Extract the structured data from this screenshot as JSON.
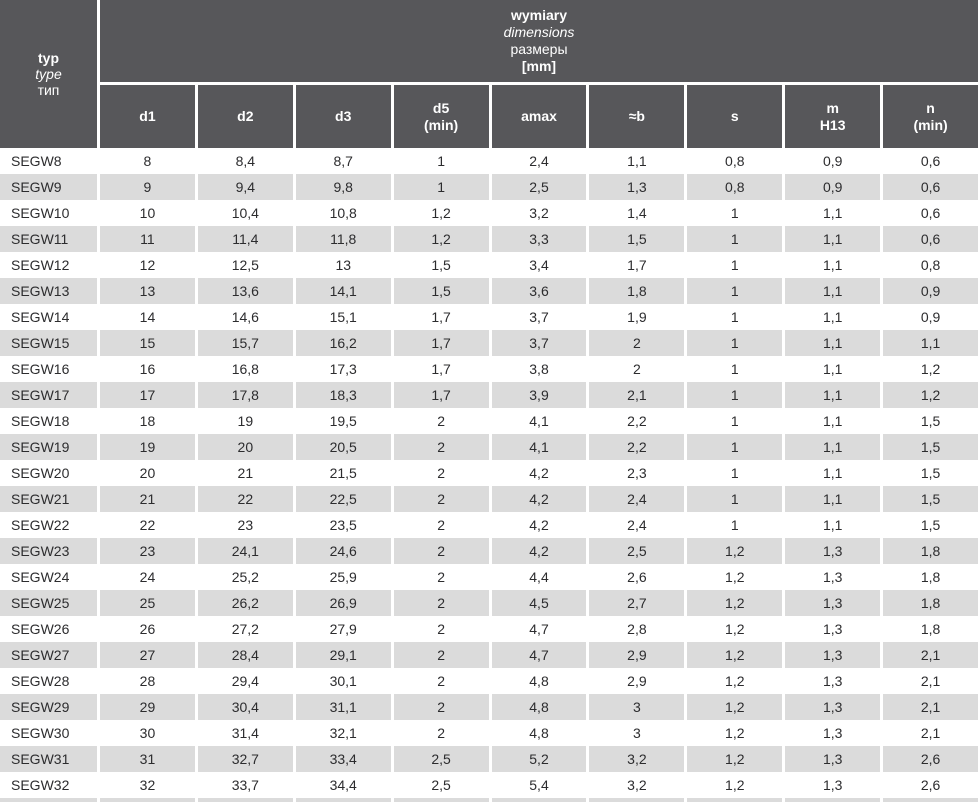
{
  "colors": {
    "header_bg": "#57575a",
    "header_text": "#ffffff",
    "alt_row_bg": "#dbdbdb",
    "row_bg": "#ffffff",
    "cell_text": "#2c2c2e",
    "separator": "#ffffff"
  },
  "table": {
    "corner_lines": [
      "typ",
      "type",
      "тип"
    ],
    "group_lines": [
      "wymiary",
      "dimensions",
      "размеры",
      "[mm]"
    ],
    "columns": [
      {
        "label": "d1",
        "sub": ""
      },
      {
        "label": "d2",
        "sub": ""
      },
      {
        "label": "d3",
        "sub": ""
      },
      {
        "label": "d5",
        "sub": "(min)"
      },
      {
        "label": "amax",
        "sub": ""
      },
      {
        "label": "≈b",
        "sub": ""
      },
      {
        "label": "s",
        "sub": ""
      },
      {
        "label": "m",
        "sub": "H13"
      },
      {
        "label": "n",
        "sub": "(min)"
      }
    ],
    "rows": [
      {
        "typ": "SEGW8",
        "values": [
          "8",
          "8,4",
          "8,7",
          "1",
          "2,4",
          "1,1",
          "0,8",
          "0,9",
          "0,6"
        ]
      },
      {
        "typ": "SEGW9",
        "values": [
          "9",
          "9,4",
          "9,8",
          "1",
          "2,5",
          "1,3",
          "0,8",
          "0,9",
          "0,6"
        ]
      },
      {
        "typ": "SEGW10",
        "values": [
          "10",
          "10,4",
          "10,8",
          "1,2",
          "3,2",
          "1,4",
          "1",
          "1,1",
          "0,6"
        ]
      },
      {
        "typ": "SEGW11",
        "values": [
          "11",
          "11,4",
          "11,8",
          "1,2",
          "3,3",
          "1,5",
          "1",
          "1,1",
          "0,6"
        ]
      },
      {
        "typ": "SEGW12",
        "values": [
          "12",
          "12,5",
          "13",
          "1,5",
          "3,4",
          "1,7",
          "1",
          "1,1",
          "0,8"
        ]
      },
      {
        "typ": "SEGW13",
        "values": [
          "13",
          "13,6",
          "14,1",
          "1,5",
          "3,6",
          "1,8",
          "1",
          "1,1",
          "0,9"
        ]
      },
      {
        "typ": "SEGW14",
        "values": [
          "14",
          "14,6",
          "15,1",
          "1,7",
          "3,7",
          "1,9",
          "1",
          "1,1",
          "0,9"
        ]
      },
      {
        "typ": "SEGW15",
        "values": [
          "15",
          "15,7",
          "16,2",
          "1,7",
          "3,7",
          "2",
          "1",
          "1,1",
          "1,1"
        ]
      },
      {
        "typ": "SEGW16",
        "values": [
          "16",
          "16,8",
          "17,3",
          "1,7",
          "3,8",
          "2",
          "1",
          "1,1",
          "1,2"
        ]
      },
      {
        "typ": "SEGW17",
        "values": [
          "17",
          "17,8",
          "18,3",
          "1,7",
          "3,9",
          "2,1",
          "1",
          "1,1",
          "1,2"
        ]
      },
      {
        "typ": "SEGW18",
        "values": [
          "18",
          "19",
          "19,5",
          "2",
          "4,1",
          "2,2",
          "1",
          "1,1",
          "1,5"
        ]
      },
      {
        "typ": "SEGW19",
        "values": [
          "19",
          "20",
          "20,5",
          "2",
          "4,1",
          "2,2",
          "1",
          "1,1",
          "1,5"
        ]
      },
      {
        "typ": "SEGW20",
        "values": [
          "20",
          "21",
          "21,5",
          "2",
          "4,2",
          "2,3",
          "1",
          "1,1",
          "1,5"
        ]
      },
      {
        "typ": "SEGW21",
        "values": [
          "21",
          "22",
          "22,5",
          "2",
          "4,2",
          "2,4",
          "1",
          "1,1",
          "1,5"
        ]
      },
      {
        "typ": "SEGW22",
        "values": [
          "22",
          "23",
          "23,5",
          "2",
          "4,2",
          "2,4",
          "1",
          "1,1",
          "1,5"
        ]
      },
      {
        "typ": "SEGW23",
        "values": [
          "23",
          "24,1",
          "24,6",
          "2",
          "4,2",
          "2,5",
          "1,2",
          "1,3",
          "1,8"
        ]
      },
      {
        "typ": "SEGW24",
        "values": [
          "24",
          "25,2",
          "25,9",
          "2",
          "4,4",
          "2,6",
          "1,2",
          "1,3",
          "1,8"
        ]
      },
      {
        "typ": "SEGW25",
        "values": [
          "25",
          "26,2",
          "26,9",
          "2",
          "4,5",
          "2,7",
          "1,2",
          "1,3",
          "1,8"
        ]
      },
      {
        "typ": "SEGW26",
        "values": [
          "26",
          "27,2",
          "27,9",
          "2",
          "4,7",
          "2,8",
          "1,2",
          "1,3",
          "1,8"
        ]
      },
      {
        "typ": "SEGW27",
        "values": [
          "27",
          "28,4",
          "29,1",
          "2",
          "4,7",
          "2,9",
          "1,2",
          "1,3",
          "2,1"
        ]
      },
      {
        "typ": "SEGW28",
        "values": [
          "28",
          "29,4",
          "30,1",
          "2",
          "4,8",
          "2,9",
          "1,2",
          "1,3",
          "2,1"
        ]
      },
      {
        "typ": "SEGW29",
        "values": [
          "29",
          "30,4",
          "31,1",
          "2",
          "4,8",
          "3",
          "1,2",
          "1,3",
          "2,1"
        ]
      },
      {
        "typ": "SEGW30",
        "values": [
          "30",
          "31,4",
          "32,1",
          "2",
          "4,8",
          "3",
          "1,2",
          "1,3",
          "2,1"
        ]
      },
      {
        "typ": "SEGW31",
        "values": [
          "31",
          "32,7",
          "33,4",
          "2,5",
          "5,2",
          "3,2",
          "1,2",
          "1,3",
          "2,6"
        ]
      },
      {
        "typ": "SEGW32",
        "values": [
          "32",
          "33,7",
          "34,4",
          "2,5",
          "5,4",
          "3,2",
          "1,2",
          "1,3",
          "2,6"
        ]
      }
    ]
  }
}
